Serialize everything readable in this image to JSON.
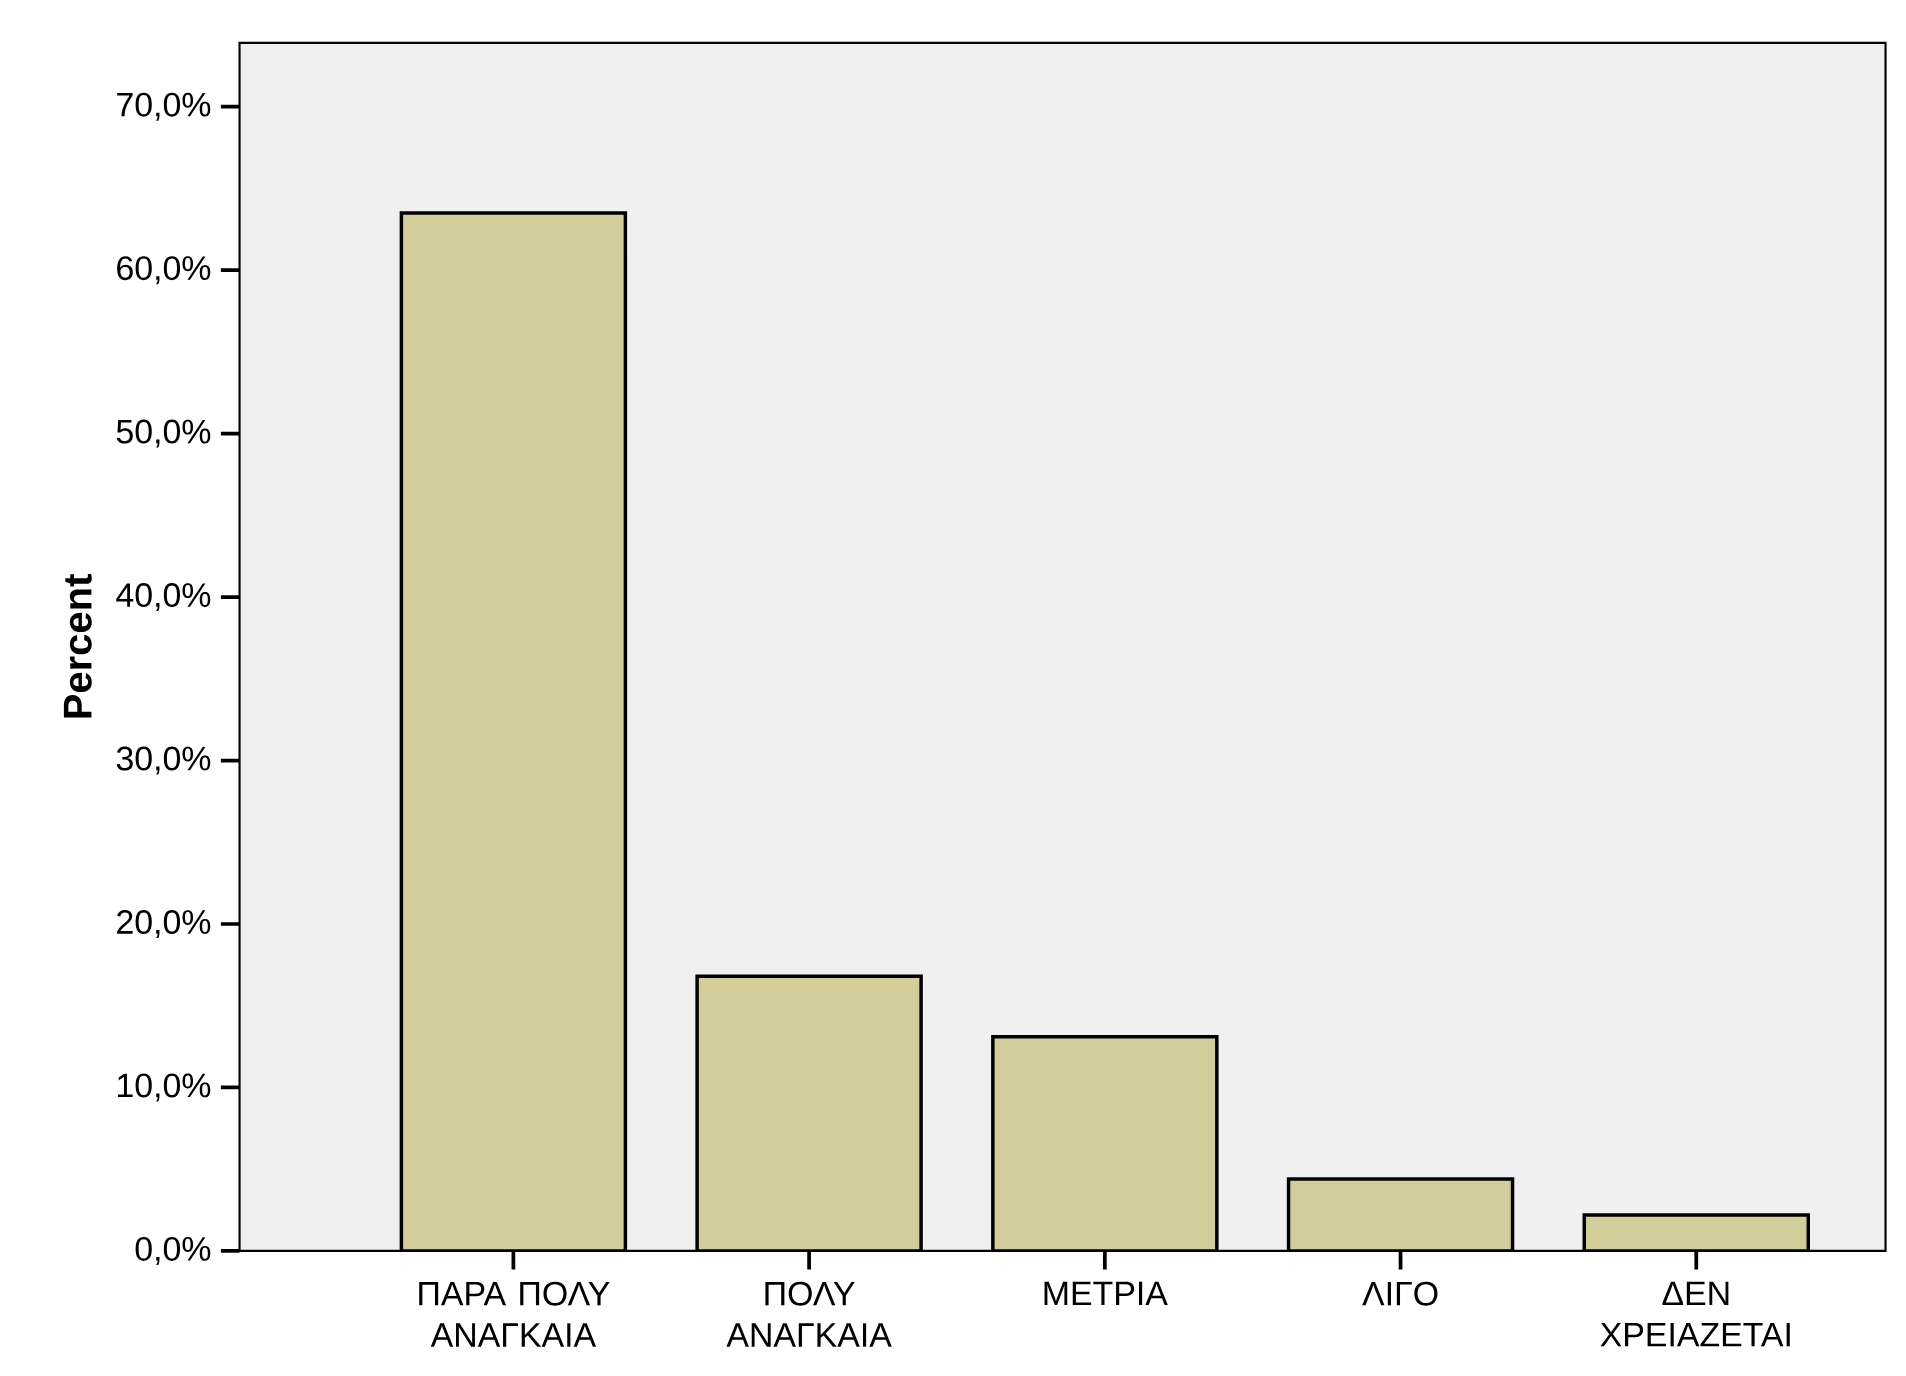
{
  "chart_data": {
    "type": "bar",
    "ylabel": "Percent",
    "categories": [
      "ΠΑΡΑ ΠΟΛΥ ΑΝΑΓΚΑΙΑ",
      "ΠΟΛΥ ΑΝΑΓΚΑΙΑ",
      "ΜΕΤΡΙΑ",
      "ΛΙΓΟ",
      "ΔΕΝ ΧΡΕΙΑΖΕΤΑΙ"
    ],
    "values": [
      63.5,
      16.8,
      13.1,
      4.4,
      2.2
    ],
    "color": "#d3ce99",
    "ylim": [
      0,
      73.9
    ],
    "yticks": [
      {
        "value": 0,
        "label": "0,0%"
      },
      {
        "value": 10,
        "label": "10,0%"
      },
      {
        "value": 20,
        "label": "20,0%"
      },
      {
        "value": 30,
        "label": "30,0%"
      },
      {
        "value": 40,
        "label": "40,0%"
      },
      {
        "value": 50,
        "label": "50,0%"
      },
      {
        "value": 60,
        "label": "60,0%"
      },
      {
        "value": 70,
        "label": "70,0%"
      }
    ],
    "grid": false
  }
}
